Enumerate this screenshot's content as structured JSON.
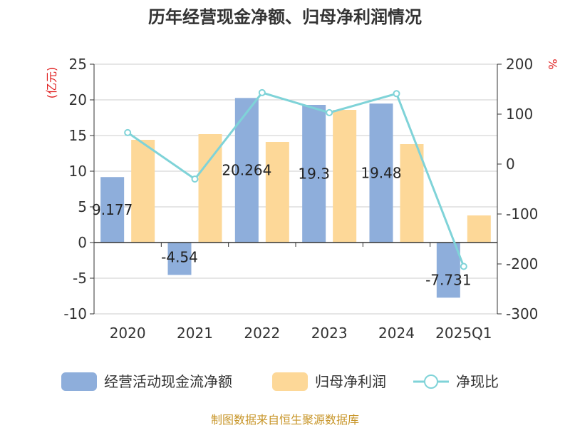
{
  "title": "历年经营现金净额、归母净利润情况",
  "source": "制图数据来自恒生聚源数据库",
  "left_unit": "(亿元)",
  "right_unit": "%",
  "colors": {
    "cash_flow": "#8eaedb",
    "net_profit": "#fdd898",
    "ratio": "#7fd3d8",
    "grid": "#cccccc",
    "axis": "#333333"
  },
  "legend": [
    {
      "key": "cash_flow",
      "label": "经营活动现金流净额",
      "shape": "bar"
    },
    {
      "key": "net_profit",
      "label": "归母净利润",
      "shape": "bar"
    },
    {
      "key": "ratio",
      "label": "净现比",
      "shape": "line-circle"
    }
  ],
  "chart_data": {
    "type": "bar",
    "title": "历年经营现金净额、归母净利润情况",
    "categories": [
      "2020",
      "2021",
      "2022",
      "2023",
      "2024",
      "2025Q1"
    ],
    "y_left": {
      "unit": "(亿元)",
      "lim": [
        -10,
        25
      ],
      "ticks": [
        -10,
        -5,
        0,
        5,
        10,
        15,
        20,
        25
      ]
    },
    "y_right": {
      "unit": "%",
      "lim": [
        -300,
        200
      ],
      "ticks": [
        -300,
        -200,
        -100,
        0,
        100,
        200
      ]
    },
    "series": [
      {
        "name": "经营活动现金流净额",
        "type": "bar",
        "axis": "left",
        "values": [
          9.177,
          -4.54,
          20.264,
          19.3,
          19.48,
          -7.731
        ],
        "labels": [
          "9.177",
          "-4.54",
          "20.264",
          "19.3",
          "19.48",
          "-7.731"
        ]
      },
      {
        "name": "归母净利润",
        "type": "bar",
        "axis": "left",
        "values": [
          14.4,
          15.2,
          14.1,
          18.6,
          13.8,
          3.8
        ]
      },
      {
        "name": "净现比",
        "type": "line",
        "axis": "right",
        "values": [
          63,
          -30,
          143,
          103,
          141,
          -205
        ]
      }
    ],
    "grid": true,
    "legend_position": "bottom"
  }
}
